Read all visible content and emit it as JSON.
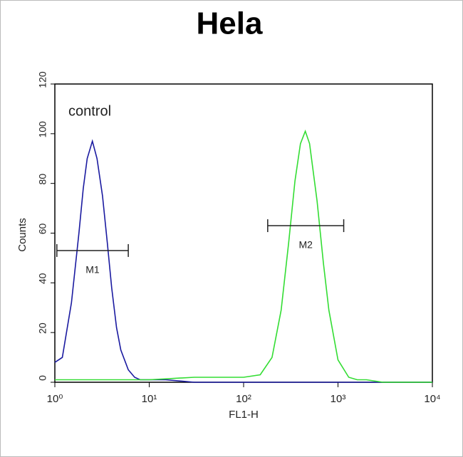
{
  "chart_data": {
    "type": "line",
    "title": "Hela",
    "xlabel": "FL1-H",
    "ylabel": "Counts",
    "log_x": true,
    "annotation": "control",
    "xlim": [
      1,
      10000
    ],
    "xticks": [
      {
        "value": 1,
        "label": "10⁰"
      },
      {
        "value": 10,
        "label": "10¹"
      },
      {
        "value": 100,
        "label": "10²"
      },
      {
        "value": 1000,
        "label": "10³"
      },
      {
        "value": 10000,
        "label": "10⁴"
      }
    ],
    "ylim": [
      0,
      120
    ],
    "yticks": [
      0,
      20,
      40,
      60,
      80,
      100,
      120
    ],
    "series": [
      {
        "color": "#1a1aa0",
        "x": [
          1,
          1.2,
          1.5,
          1.8,
          2,
          2.2,
          2.5,
          2.8,
          3.2,
          3.6,
          4,
          4.5,
          5,
          6,
          7,
          8,
          10,
          15,
          30,
          100,
          1000,
          10000
        ],
        "values": [
          8,
          10,
          32,
          60,
          78,
          90,
          97,
          90,
          75,
          56,
          38,
          22,
          13,
          5,
          2,
          1,
          1,
          1,
          0,
          0,
          0,
          0
        ]
      },
      {
        "color": "#33dd33",
        "x": [
          1,
          10,
          30,
          50,
          100,
          150,
          200,
          250,
          300,
          350,
          400,
          450,
          500,
          600,
          700,
          800,
          1000,
          1300,
          1600,
          2000,
          3000,
          10000
        ],
        "values": [
          1,
          1,
          2,
          2,
          2,
          3,
          10,
          29,
          56,
          81,
          96,
          101,
          96,
          73,
          48,
          29,
          9,
          2,
          1,
          1,
          0,
          0
        ]
      }
    ],
    "markers": [
      {
        "label": "M1",
        "range": [
          1.05,
          6
        ],
        "y": 53
      },
      {
        "label": "M2",
        "range": [
          180,
          1150
        ],
        "y": 63
      }
    ]
  }
}
